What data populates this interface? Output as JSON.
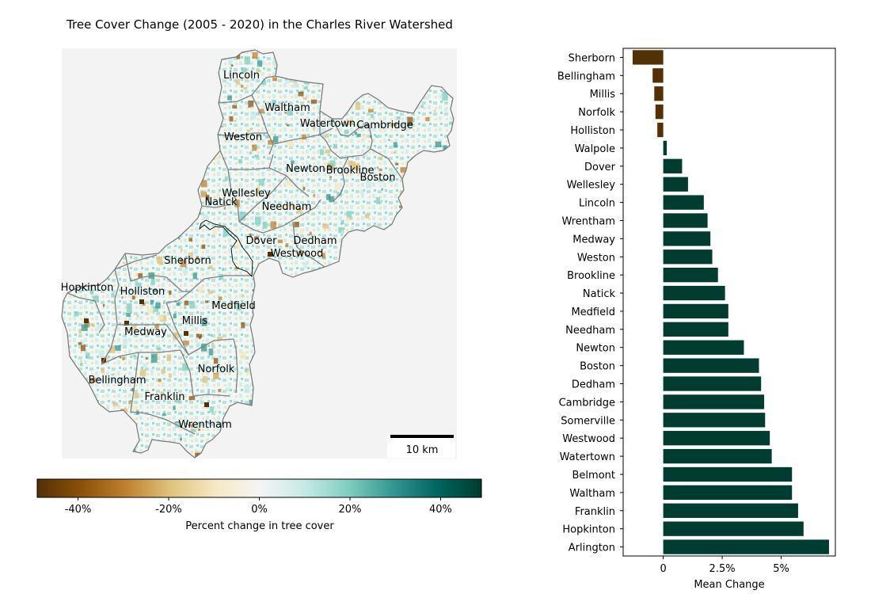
{
  "map_panel": {
    "title": "Tree Cover Change (2005 - 2020) in the Charles River Watershed",
    "scale_bar_label": "10 km",
    "towns": [
      {
        "name": "Lincoln",
        "lx": 305,
        "ly": 95
      },
      {
        "name": "Waltham",
        "lx": 363,
        "ly": 136
      },
      {
        "name": "Watertown",
        "lx": 414,
        "ly": 156
      },
      {
        "name": "Cambridge",
        "lx": 486,
        "ly": 158
      },
      {
        "name": "Weston",
        "lx": 307,
        "ly": 173
      },
      {
        "name": "Newton",
        "lx": 386,
        "ly": 213
      },
      {
        "name": "Brookline",
        "lx": 442,
        "ly": 215
      },
      {
        "name": "Boston",
        "lx": 477,
        "ly": 224
      },
      {
        "name": "Wellesley",
        "lx": 311,
        "ly": 244
      },
      {
        "name": "Natick",
        "lx": 279,
        "ly": 255
      },
      {
        "name": "Needham",
        "lx": 362,
        "ly": 261
      },
      {
        "name": "Dover",
        "lx": 330,
        "ly": 304
      },
      {
        "name": "Dedham",
        "lx": 398,
        "ly": 304
      },
      {
        "name": "Westwood",
        "lx": 375,
        "ly": 320
      },
      {
        "name": "Sherborn",
        "lx": 237,
        "ly": 329
      },
      {
        "name": "Hopkinton",
        "lx": 110,
        "ly": 363
      },
      {
        "name": "Holliston",
        "lx": 180,
        "ly": 368
      },
      {
        "name": "Medfield",
        "lx": 295,
        "ly": 386
      },
      {
        "name": "Millis",
        "lx": 246,
        "ly": 405
      },
      {
        "name": "Medway",
        "lx": 184,
        "ly": 419
      },
      {
        "name": "Norfolk",
        "lx": 273,
        "ly": 466
      },
      {
        "name": "Bellingham",
        "lx": 148,
        "ly": 480
      },
      {
        "name": "Franklin",
        "lx": 208,
        "ly": 501
      },
      {
        "name": "Wrentham",
        "lx": 259,
        "ly": 536
      }
    ]
  },
  "colorbar": {
    "label": "Percent change in tree cover",
    "ticks": [
      {
        "value": -40,
        "label": "-40%"
      },
      {
        "value": -20,
        "label": "-20%"
      },
      {
        "value": 0,
        "label": "0%"
      },
      {
        "value": 20,
        "label": "20%"
      },
      {
        "value": 40,
        "label": "40%"
      }
    ],
    "range": [
      -49,
      49
    ],
    "colors": [
      "#543005",
      "#8c510a",
      "#bf812d",
      "#dfc27d",
      "#f6e8c3",
      "#f5f5f5",
      "#c7eae5",
      "#80cdc1",
      "#35978f",
      "#01665e",
      "#003c30"
    ]
  },
  "chart_data": {
    "type": "bar",
    "orientation": "horizontal",
    "title": "",
    "xlabel": "Mean Change",
    "ylabel": "",
    "xlim": [
      -1.7,
      7.3
    ],
    "xticks": [
      {
        "value": 0,
        "label": "0"
      },
      {
        "value": 2.5,
        "label": "2.5%"
      },
      {
        "value": 5,
        "label": "5%"
      }
    ],
    "categories": [
      "Sherborn",
      "Bellingham",
      "Millis",
      "Norfolk",
      "Holliston",
      "Walpole",
      "Dover",
      "Wellesley",
      "Lincoln",
      "Wrentham",
      "Medway",
      "Weston",
      "Brookline",
      "Natick",
      "Medfield",
      "Needham",
      "Newton",
      "Boston",
      "Dedham",
      "Cambridge",
      "Somerville",
      "Westwood",
      "Watertown",
      "Belmont",
      "Waltham",
      "Franklin",
      "Hopkinton",
      "Arlington"
    ],
    "values": [
      -1.3,
      -0.45,
      -0.38,
      -0.33,
      -0.25,
      0.15,
      0.8,
      1.05,
      1.72,
      1.88,
      2.0,
      2.08,
      2.32,
      2.62,
      2.76,
      2.76,
      3.42,
      4.06,
      4.15,
      4.28,
      4.32,
      4.52,
      4.6,
      5.46,
      5.46,
      5.72,
      5.95,
      7.03
    ],
    "colors": {
      "negative": "#543005",
      "positive": "#003c30"
    },
    "grid": false,
    "legend": "none"
  }
}
